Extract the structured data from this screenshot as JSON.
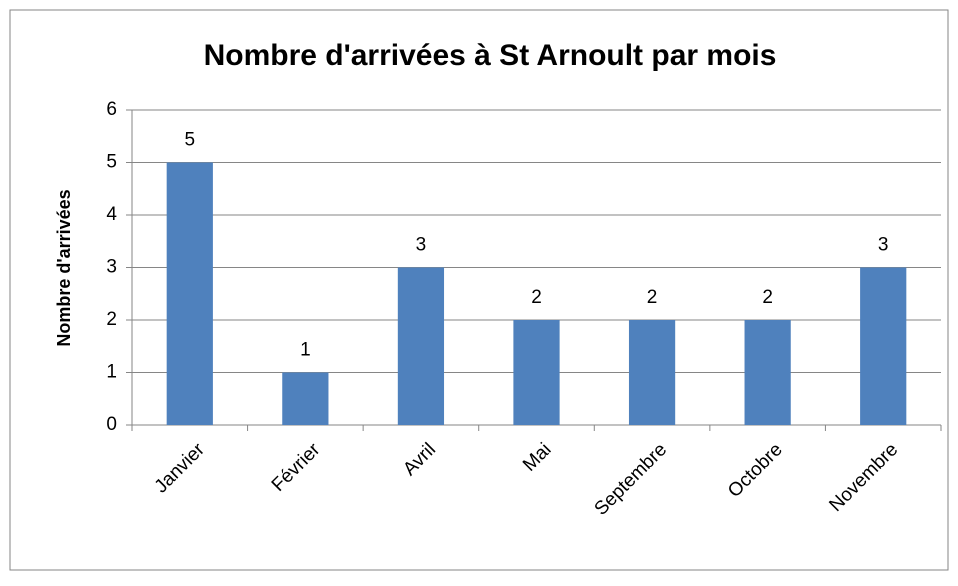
{
  "chart_data": {
    "type": "bar",
    "title": "Nombre d'arrivées à St Arnoult par mois",
    "y_label": "Nombre d'arrivées",
    "categories": [
      "Janvier",
      "Février",
      "Avril",
      "Mai",
      "Septembre",
      "Octobre",
      "Novembre"
    ],
    "values": [
      5,
      1,
      3,
      2,
      2,
      2,
      3
    ],
    "color": "#4f81bd",
    "ylim": [
      0,
      6
    ],
    "yticks": [
      0,
      1,
      2,
      3,
      4,
      5,
      6
    ],
    "grid": true
  }
}
